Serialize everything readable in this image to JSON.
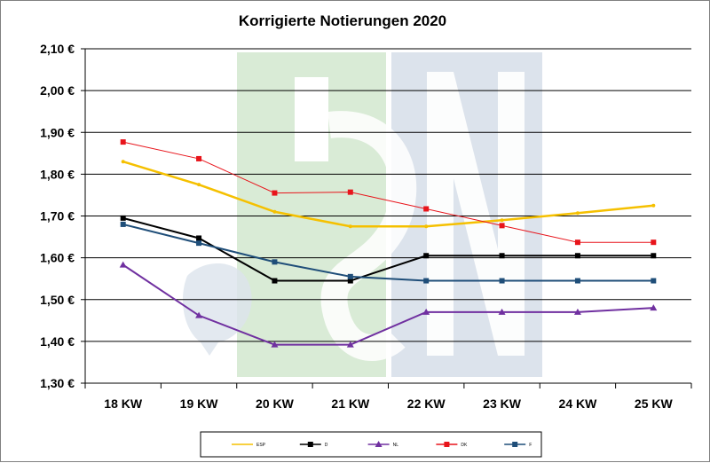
{
  "chart_data": {
    "type": "line",
    "title": "Korrigierte Notierungen 2020",
    "xlabel": "",
    "ylabel": "",
    "categories": [
      "18 KW",
      "19 KW",
      "20 KW",
      "21 KW",
      "22 KW",
      "23 KW",
      "24 KW",
      "25 KW"
    ],
    "ylim": [
      1.3,
      2.1
    ],
    "yticks": [
      1.3,
      1.4,
      1.5,
      1.6,
      1.7,
      1.8,
      1.9,
      2.0,
      2.1
    ],
    "ytick_labels": [
      "1,30 €",
      "1,40 €",
      "1,50 €",
      "1,60 €",
      "1,70 €",
      "1,80 €",
      "1,90 €",
      "2,00 €",
      "2,10 €"
    ],
    "grid": true,
    "legend_position": "bottom",
    "series": [
      {
        "name": "ESP",
        "color": "#F5C000",
        "marker": "none",
        "width": 2.5,
        "values": [
          1.83,
          1.775,
          1.71,
          1.675,
          1.675,
          1.69,
          1.707,
          1.725
        ]
      },
      {
        "name": "D",
        "color": "#000000",
        "marker": "square",
        "width": 2,
        "values": [
          1.695,
          1.647,
          1.545,
          1.545,
          1.605,
          1.605,
          1.605,
          1.605
        ]
      },
      {
        "name": "NL",
        "color": "#7030A0",
        "marker": "triangle",
        "width": 2,
        "values": [
          1.583,
          1.462,
          1.392,
          1.392,
          1.47,
          1.47,
          1.47,
          1.48
        ]
      },
      {
        "name": "DK",
        "color": "#E8141B",
        "marker": "square",
        "width": 1,
        "values": [
          1.877,
          1.837,
          1.755,
          1.757,
          1.717,
          1.677,
          1.637,
          1.637
        ]
      },
      {
        "name": "F",
        "color": "#1F4E79",
        "marker": "square",
        "width": 2,
        "values": [
          1.68,
          1.635,
          1.59,
          1.555,
          1.545,
          1.545,
          1.545,
          1.545
        ]
      }
    ]
  },
  "watermark": {
    "color_left": "#D9EBD6",
    "color_right": "#DCE3EC",
    "letters": "ISN"
  }
}
